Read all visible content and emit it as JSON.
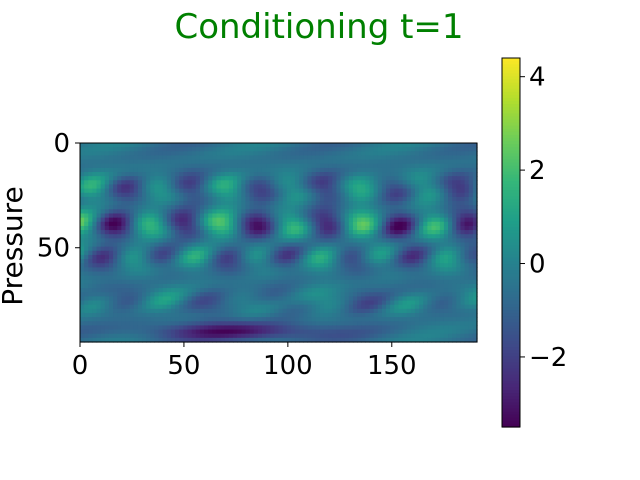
{
  "chart_data": {
    "type": "heatmap",
    "title": "Conditioning t=1",
    "title_color": "#008000",
    "xlabel": "",
    "ylabel": "Pressure",
    "x_range": [
      0,
      191
    ],
    "y_range": [
      0,
      95
    ],
    "y_inverted": true,
    "x_ticks": [
      0,
      50,
      100,
      150
    ],
    "y_ticks": [
      0,
      50
    ],
    "colormap": "viridis",
    "colorbar": {
      "range": [
        -3.5,
        4.4
      ],
      "ticks": [
        -2,
        0,
        2,
        4
      ],
      "tick_labels": [
        "−2",
        "0",
        "2",
        "4"
      ]
    },
    "grid": false,
    "field": {
      "description_free": true,
      "background": -0.5,
      "bands": [
        {
          "y": 22,
          "amplitude": 1.6,
          "period": 32,
          "phase": 0.3
        },
        {
          "y": 39,
          "amplitude": 2.6,
          "period": 34,
          "phase": 1.6
        },
        {
          "y": 55,
          "amplitude": 1.3,
          "period": 30,
          "phase": 2.4
        },
        {
          "y": 76,
          "amplitude": 0.8,
          "period": 38,
          "phase": 0.9
        }
      ],
      "bottom_min": {
        "x": 75,
        "y": 90,
        "value": -3.4
      }
    }
  }
}
